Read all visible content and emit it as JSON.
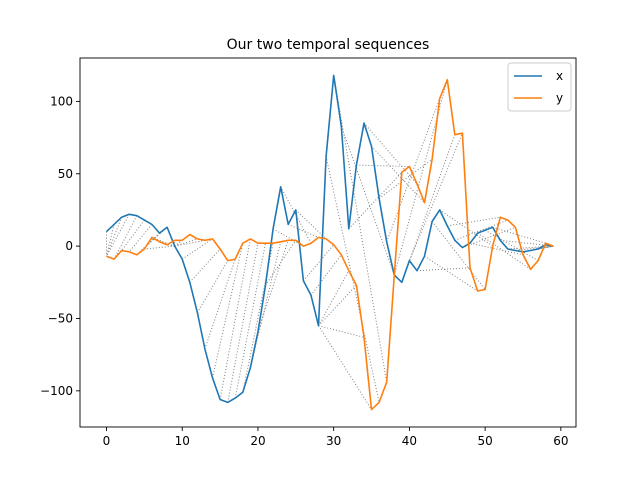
{
  "chart_data": {
    "type": "line",
    "title": "Our two temporal sequences",
    "xlabel": "",
    "ylabel": "",
    "xlim": [
      -3.5,
      62
    ],
    "ylim": [
      -125,
      130
    ],
    "x_ticks": [
      0,
      10,
      20,
      30,
      40,
      50,
      60
    ],
    "y_ticks": [
      -100,
      -50,
      0,
      50,
      100
    ],
    "grid": false,
    "legend_position": "top-right",
    "x": [
      0,
      1,
      2,
      3,
      4,
      5,
      6,
      7,
      8,
      9,
      10,
      11,
      12,
      13,
      14,
      15,
      16,
      17,
      18,
      19,
      20,
      21,
      22,
      23,
      24,
      25,
      26,
      27,
      28,
      29,
      30,
      31,
      32,
      33,
      34,
      35,
      36,
      37,
      38,
      39,
      40,
      41,
      42,
      43,
      44,
      45,
      46,
      47,
      48,
      49,
      50,
      51,
      52,
      53,
      54,
      55,
      56,
      57,
      58,
      59
    ],
    "series": [
      {
        "name": "x",
        "color": "#1f77b4",
        "values": [
          10,
          15,
          20,
          22,
          21,
          18,
          15,
          9,
          13,
          0,
          -9,
          -25,
          -46,
          -71,
          -91,
          -106,
          -108,
          -105,
          -101,
          -84,
          -59,
          -27,
          12,
          41,
          15,
          25,
          -24,
          -34,
          -55,
          62,
          118,
          83,
          12,
          56,
          85,
          69,
          33,
          3,
          -20,
          -25,
          -10,
          -17,
          -7,
          17,
          25,
          14,
          4,
          -1,
          2,
          9,
          11,
          13,
          4,
          -2,
          -3,
          -4,
          -3,
          -2,
          1,
          0
        ]
      },
      {
        "name": "y",
        "color": "#ff7f0e",
        "values": [
          -7,
          -9,
          -3,
          -4,
          -6,
          -2,
          6,
          3,
          1,
          4,
          4,
          8,
          5,
          4,
          5,
          -2,
          -10,
          -9,
          2,
          5,
          2,
          2,
          2,
          3,
          4,
          4,
          0,
          2,
          6,
          5,
          1,
          -6,
          -17,
          -27,
          -63,
          -113,
          -108,
          -94,
          -20,
          51,
          55,
          43,
          30,
          60,
          102,
          115,
          77,
          78,
          -15,
          -31,
          -30,
          0,
          20,
          18,
          13,
          -6,
          -16,
          -10,
          2,
          0
        ]
      }
    ],
    "alignment_pairs": [
      [
        0,
        0
      ],
      [
        1,
        0
      ],
      [
        2,
        0
      ],
      [
        3,
        0
      ],
      [
        4,
        1
      ],
      [
        5,
        2
      ],
      [
        6,
        3
      ],
      [
        7,
        4
      ],
      [
        8,
        4
      ],
      [
        9,
        5
      ],
      [
        9,
        6
      ],
      [
        9,
        7
      ],
      [
        9,
        8
      ],
      [
        9,
        9
      ],
      [
        9,
        10
      ],
      [
        9,
        11
      ],
      [
        9,
        12
      ],
      [
        9,
        13
      ],
      [
        10,
        14
      ],
      [
        11,
        15
      ],
      [
        12,
        16
      ],
      [
        13,
        17
      ],
      [
        14,
        18
      ],
      [
        15,
        19
      ],
      [
        16,
        20
      ],
      [
        17,
        21
      ],
      [
        18,
        22
      ],
      [
        19,
        23
      ],
      [
        20,
        24
      ],
      [
        21,
        25
      ],
      [
        22,
        26
      ],
      [
        23,
        27
      ],
      [
        24,
        28
      ],
      [
        25,
        29
      ],
      [
        26,
        30
      ],
      [
        27,
        31
      ],
      [
        28,
        32
      ],
      [
        28,
        33
      ],
      [
        28,
        34
      ],
      [
        28,
        35
      ],
      [
        29,
        36
      ],
      [
        30,
        37
      ],
      [
        31,
        38
      ],
      [
        32,
        39
      ],
      [
        33,
        40
      ],
      [
        34,
        41
      ],
      [
        35,
        42
      ],
      [
        36,
        43
      ],
      [
        37,
        44
      ],
      [
        38,
        45
      ],
      [
        39,
        46
      ],
      [
        40,
        47
      ],
      [
        41,
        48
      ],
      [
        42,
        49
      ],
      [
        43,
        50
      ],
      [
        44,
        51
      ],
      [
        45,
        52
      ],
      [
        46,
        53
      ],
      [
        47,
        54
      ],
      [
        48,
        55
      ],
      [
        49,
        56
      ],
      [
        50,
        57
      ],
      [
        51,
        58
      ],
      [
        52,
        59
      ],
      [
        53,
        59
      ],
      [
        54,
        59
      ],
      [
        55,
        59
      ],
      [
        56,
        59
      ],
      [
        57,
        59
      ],
      [
        58,
        59
      ],
      [
        59,
        59
      ]
    ]
  }
}
